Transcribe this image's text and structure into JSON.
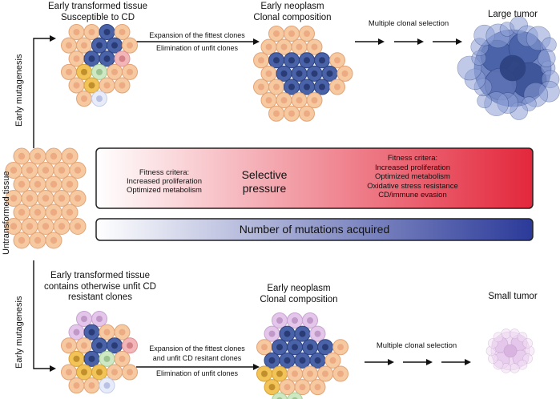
{
  "top": {
    "side_label": "Early mutagenesis",
    "tissue_label": [
      "Early transformed tissue",
      "Susceptible to CD"
    ],
    "arrow_label": [
      "Expansion of the fittest clones",
      "Elimination of unfit clones"
    ],
    "neoplasm_label": [
      "Early neoplasm",
      "Clonal composition"
    ],
    "selection_label": "Multiple clonal selection",
    "tumor_label": "Large tumor"
  },
  "middle": {
    "side_label": "Untransformed tissue",
    "pressure_left": [
      "Fitness critera:",
      "Increased proliferation",
      "Optimized metabolism"
    ],
    "pressure_center": [
      "Selective",
      "pressure"
    ],
    "pressure_right": [
      "Fitness critera:",
      "Increased proliferation",
      "Optimized metabolism",
      "Oxidative stress resistance",
      "CD/immune  evasion"
    ],
    "mutations_label": "Number of mutations acquired"
  },
  "bottom": {
    "side_label": "Early mutagenesis",
    "tissue_label": [
      "Early transformed tissue",
      "contains otherwise unfit CD",
      "resistant clones"
    ],
    "arrow_label": [
      "Expansion of the fittest clones",
      "and unfit CD resitant clones",
      "Elimination of unfit clones"
    ],
    "neoplasm_label": [
      "Early neoplasm",
      "Clonal composition"
    ],
    "selection_label": "Multiple clonal selection",
    "tumor_label": "Small tumor"
  },
  "colors": {
    "peach": "#f6c9a0",
    "peach_border": "#e2a478",
    "blue": "#4a63a8",
    "blue_border": "#2e4482",
    "yellow": "#f2c356",
    "green": "#cfe8c4",
    "pink": "#f2b6b8",
    "lavender": "#e4c6ea",
    "pressure_start": "#ffffff",
    "pressure_end": "#e3273b",
    "mutations_start": "#ffffff",
    "mutations_end": "#2b3a99"
  }
}
